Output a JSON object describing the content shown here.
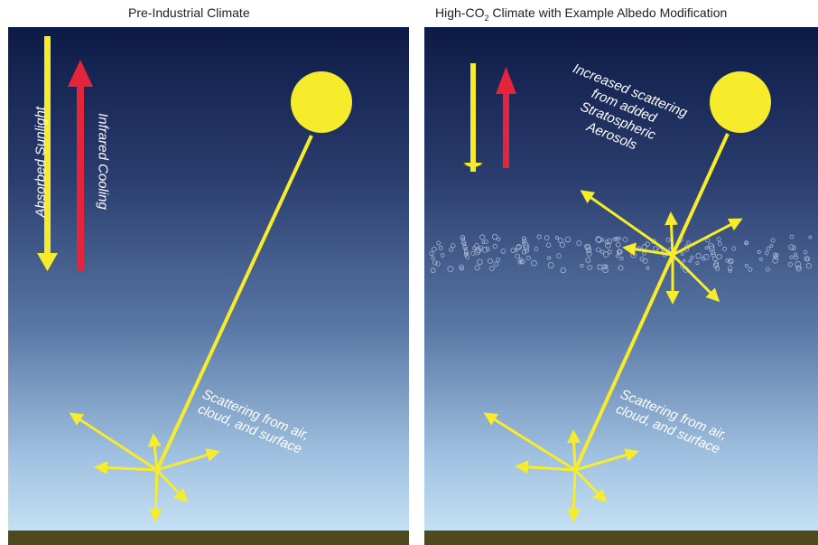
{
  "left_panel": {
    "title": "Pre-Industrial Climate",
    "absorbed_label": "Absorbed Sunlight",
    "infrared_label": "Infrared Cooling",
    "scatter_label_lines": [
      "Scattering from air,",
      "cloud, and surface"
    ]
  },
  "right_panel": {
    "title_prefix": "High-CO",
    "title_sub": "2",
    "title_suffix": " Climate with Example Albedo Modification",
    "aerosol_label_lines": [
      "Increased scattering",
      "from added",
      "Stratospheric",
      "Aerosols"
    ],
    "scatter_label_lines": [
      "Scattering from air,",
      "cloud, and surface"
    ]
  },
  "colors": {
    "sunlight": "#f7ec2c",
    "infrared": "#e3243b",
    "ground": "#4f4a1e",
    "sky_top": "#0d1a46",
    "sky_bottom": "#c4e0f3"
  }
}
